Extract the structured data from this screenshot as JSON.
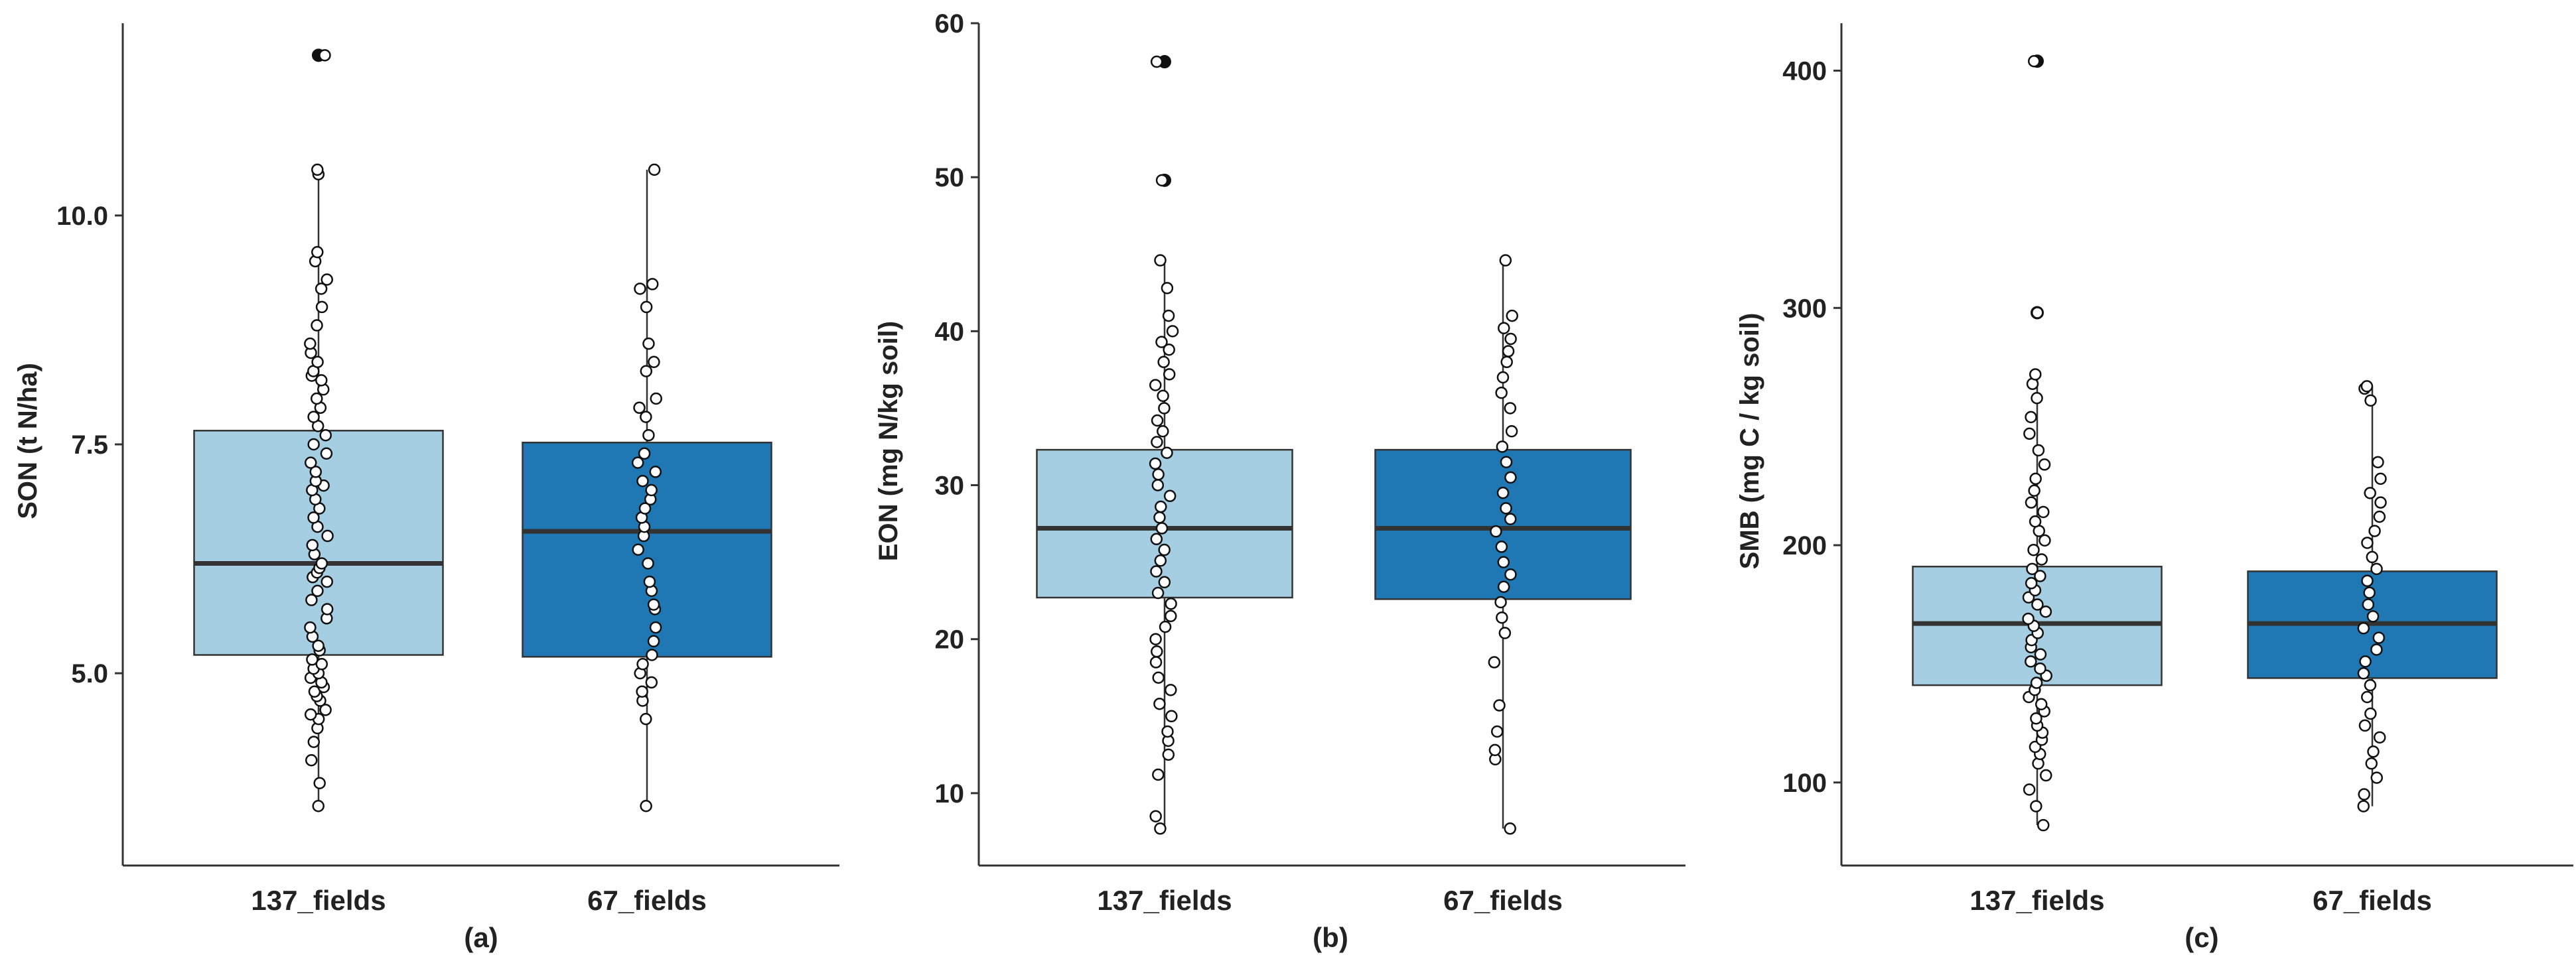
{
  "chart_data": [
    {
      "type": "box",
      "panel_label": "(a)",
      "ylabel": "SON (t N/ha)",
      "ylim": [
        2.9,
        12.1
      ],
      "yticks": [
        5.0,
        7.5,
        10.0
      ],
      "ytick_labels": [
        "5.0",
        "7.5",
        "10.0"
      ],
      "categories": [
        "137_fields",
        "67_fields"
      ],
      "box_colors": [
        "#a6cee3",
        "#1f78b4"
      ],
      "boxes": [
        {
          "name": "137_fields",
          "q1": 5.2,
          "median": 6.2,
          "q3": 7.65,
          "whisker_low": 3.55,
          "whisker_high": 10.5,
          "outliers": [
            11.75
          ]
        },
        {
          "name": "67_fields",
          "q1": 5.18,
          "median": 6.55,
          "q3": 7.52,
          "whisker_low": 3.55,
          "whisker_high": 10.5,
          "outliers": []
        }
      ],
      "points": [
        [
          3.55,
          3.8,
          4.05,
          4.25,
          4.4,
          4.5,
          4.55,
          4.6,
          4.7,
          4.75,
          4.8,
          4.85,
          4.9,
          4.95,
          5.0,
          5.05,
          5.1,
          5.15,
          5.25,
          5.3,
          5.4,
          5.5,
          5.6,
          5.7,
          5.8,
          5.9,
          6.0,
          6.05,
          6.1,
          6.15,
          6.2,
          6.3,
          6.4,
          6.5,
          6.6,
          6.7,
          6.8,
          6.9,
          7.0,
          7.05,
          7.1,
          7.2,
          7.3,
          7.4,
          7.5,
          7.6,
          7.7,
          7.8,
          7.9,
          8.0,
          8.1,
          8.2,
          8.25,
          8.3,
          8.4,
          8.5,
          8.6,
          8.8,
          9.0,
          9.2,
          9.3,
          9.5,
          9.6,
          10.45,
          10.5,
          11.75
        ],
        [
          3.55,
          4.5,
          4.7,
          4.8,
          4.9,
          5.0,
          5.1,
          5.2,
          5.35,
          5.5,
          5.7,
          5.75,
          5.9,
          6.0,
          6.2,
          6.35,
          6.5,
          6.6,
          6.7,
          6.8,
          6.9,
          7.0,
          7.1,
          7.2,
          7.3,
          7.4,
          7.6,
          7.8,
          7.9,
          8.0,
          8.3,
          8.4,
          8.6,
          9.0,
          9.2,
          9.25,
          10.5
        ]
      ]
    },
    {
      "type": "box",
      "panel_label": "(b)",
      "ylabel": "EON (mg N/kg soil)",
      "ylim": [
        5.3,
        60.0
      ],
      "yticks": [
        10,
        20,
        30,
        40,
        50,
        60
      ],
      "ytick_labels": [
        "10",
        "20",
        "30",
        "40",
        "50",
        "60"
      ],
      "categories": [
        "137_fields",
        "67_fields"
      ],
      "box_colors": [
        "#a6cee3",
        "#1f78b4"
      ],
      "boxes": [
        {
          "name": "137_fields",
          "q1": 22.7,
          "median": 27.2,
          "q3": 32.3,
          "whisker_low": 7.7,
          "whisker_high": 44.6,
          "outliers": [
            49.8,
            57.5
          ]
        },
        {
          "name": "67_fields",
          "q1": 22.6,
          "median": 27.2,
          "q3": 32.3,
          "whisker_low": 7.7,
          "whisker_high": 44.6,
          "outliers": []
        }
      ],
      "points": [
        [
          7.7,
          8.5,
          11.2,
          12.5,
          13.4,
          14.0,
          15.0,
          15.8,
          16.7,
          17.5,
          18.5,
          19.2,
          20.0,
          20.8,
          21.5,
          22.3,
          23.0,
          23.7,
          24.4,
          25.1,
          25.8,
          26.5,
          27.2,
          27.9,
          28.6,
          29.3,
          30.0,
          30.7,
          31.4,
          32.1,
          32.8,
          33.5,
          34.2,
          35.0,
          35.8,
          36.5,
          37.2,
          38.0,
          38.8,
          39.3,
          40.0,
          41.0,
          42.8,
          44.6,
          49.8,
          57.5
        ],
        [
          7.7,
          12.2,
          12.8,
          14.0,
          15.7,
          18.5,
          20.4,
          21.4,
          22.4,
          23.4,
          24.2,
          25.0,
          26.0,
          27.0,
          27.8,
          28.5,
          29.5,
          30.5,
          31.5,
          32.5,
          33.5,
          35.0,
          36.0,
          37.0,
          38.0,
          38.7,
          39.5,
          40.2,
          41.0,
          44.6
        ]
      ]
    },
    {
      "type": "box",
      "panel_label": "(c)",
      "ylabel": "SMB (mg C / kg soil)",
      "ylim": [
        65,
        420
      ],
      "yticks": [
        100,
        200,
        300,
        400
      ],
      "ytick_labels": [
        "100",
        "200",
        "300",
        "400"
      ],
      "categories": [
        "137_fields",
        "67_fields"
      ],
      "box_colors": [
        "#a6cee3",
        "#1f78b4"
      ],
      "boxes": [
        {
          "name": "137_fields",
          "q1": 141,
          "median": 167,
          "q3": 191,
          "whisker_low": 82,
          "whisker_high": 272,
          "outliers": [
            298,
            404
          ]
        },
        {
          "name": "67_fields",
          "q1": 144,
          "median": 167,
          "q3": 189,
          "whisker_low": 90,
          "whisker_high": 267,
          "outliers": []
        }
      ],
      "points": [
        [
          82,
          90,
          97,
          103,
          108,
          112,
          115,
          118,
          121,
          124,
          127,
          130,
          133,
          136,
          139,
          142,
          145,
          148,
          151,
          154,
          157,
          160,
          163,
          166,
          169,
          172,
          175,
          178,
          181,
          184,
          187,
          190,
          194,
          198,
          202,
          206,
          210,
          214,
          218,
          223,
          228,
          234,
          240,
          247,
          254,
          262,
          268,
          272,
          298,
          404
        ],
        [
          90,
          95,
          102,
          108,
          113,
          119,
          124,
          129,
          136,
          141,
          146,
          151,
          156,
          161,
          165,
          170,
          175,
          180,
          185,
          190,
          195,
          201,
          206,
          212,
          218,
          222,
          228,
          235,
          261,
          266,
          267
        ]
      ]
    }
  ]
}
